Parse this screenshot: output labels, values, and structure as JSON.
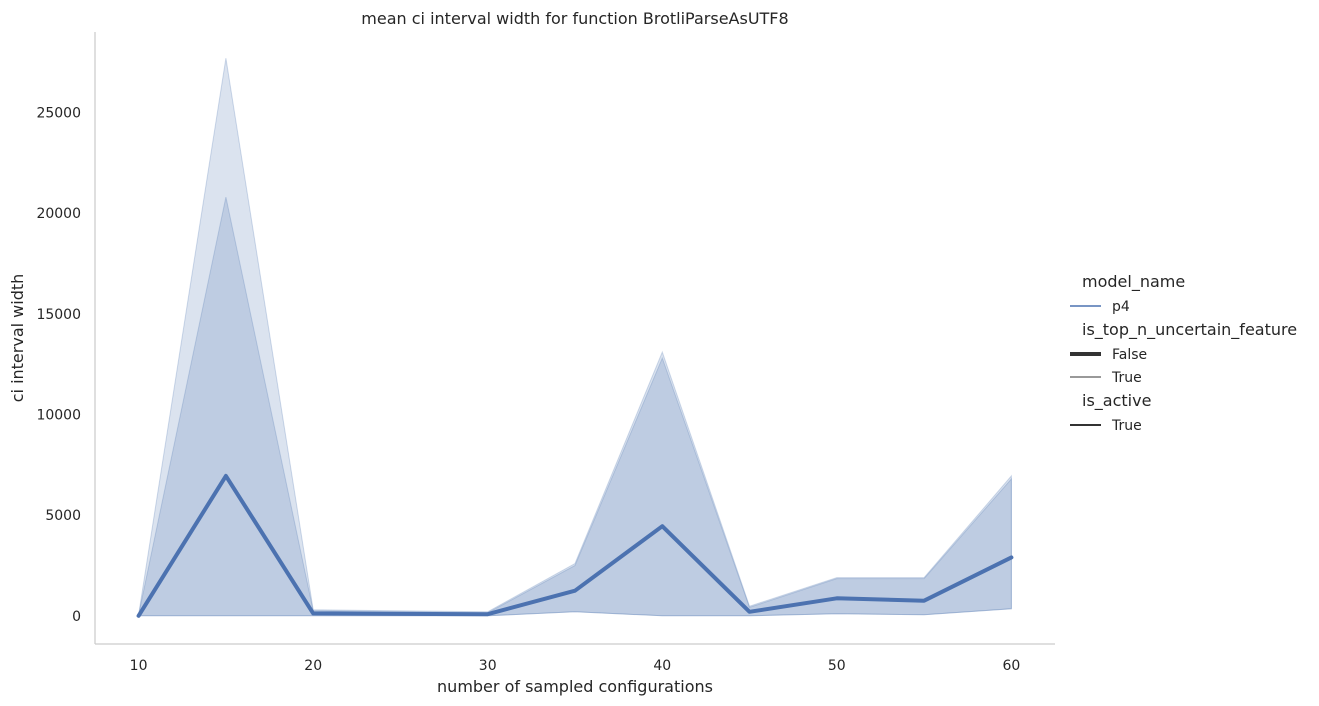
{
  "chart_data": {
    "type": "line",
    "title": "mean ci interval width for function BrotliParseAsUTF8",
    "xlabel": "number of sampled configurations",
    "ylabel": "ci interval width",
    "xlim": [
      7.5,
      62.5
    ],
    "ylim": [
      -1400,
      29000
    ],
    "xticks": [
      10,
      20,
      30,
      40,
      50,
      60
    ],
    "yticks": [
      0,
      5000,
      10000,
      15000,
      20000,
      25000
    ],
    "grid": false,
    "legend_placement": "right",
    "x": [
      10,
      15,
      20,
      30,
      35,
      40,
      45,
      50,
      55,
      60
    ],
    "series": [
      {
        "name": "p4",
        "values": [
          0,
          6950,
          120,
          80,
          1250,
          4450,
          200,
          870,
          750,
          2900
        ],
        "color": "#4c72b0",
        "bands": [
          {
            "low": [
              0,
              0,
              0,
              0,
              200,
              0,
              0,
              100,
              50,
              350
            ],
            "high": [
              50,
              20800,
              250,
              150,
              2500,
              12800,
              420,
              1850,
              1850,
              6800
            ]
          },
          {
            "low": [
              0,
              0,
              0,
              0,
              200,
              0,
              0,
              100,
              50,
              350
            ],
            "high": [
              50,
              27700,
              300,
              200,
              2600,
              13100,
              480,
              1900,
              1900,
              6950
            ]
          }
        ]
      }
    ],
    "legend": {
      "groups": [
        {
          "title": "model_name",
          "entries": [
            {
              "label": "p4",
              "style": "color"
            }
          ]
        },
        {
          "title": "is_top_n_uncertain_feature",
          "entries": [
            {
              "label": "False",
              "style": "thick"
            },
            {
              "label": "True",
              "style": "thin"
            }
          ]
        },
        {
          "title": "is_active",
          "entries": [
            {
              "label": "True",
              "style": "solid"
            }
          ]
        }
      ]
    }
  }
}
